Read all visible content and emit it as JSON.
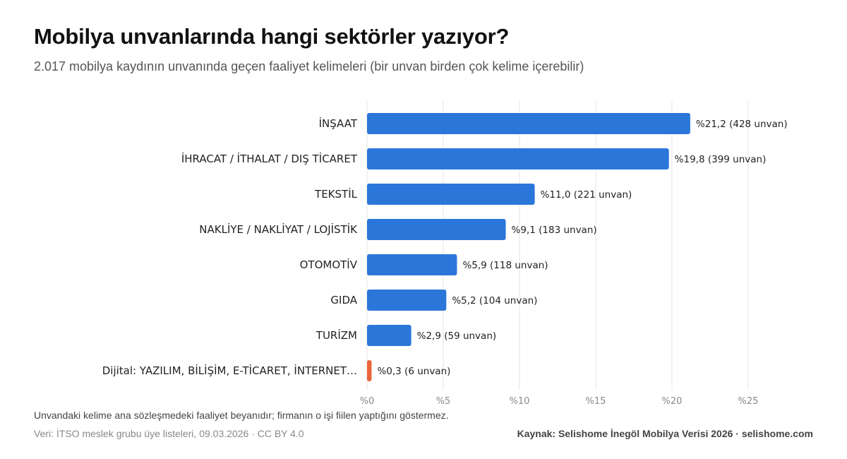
{
  "header": {
    "title": "Mobilya unvanlarında hangi sektörler yazıyor?",
    "subtitle": "2.017 mobilya kaydının unvanında geçen faaliyet kelimeleri (bir unvan birden çok kelime içerebilir)"
  },
  "footer": {
    "note": "Unvandaki kelime ana sözleşmedeki faaliyet beyanıdır; firmanın o işi fiilen yaptığını göstermez.",
    "data_source": "Veri: İTSO meslek grubu üye listeleri, 09.03.2026 · CC BY 4.0",
    "credit": "Kaynak: Selishome İnegöl Mobilya Verisi 2026 · selishome.com"
  },
  "chart_data": {
    "type": "bar",
    "orientation": "horizontal",
    "categories": [
      "İNŞAAT",
      "İHRACAT / İTHALAT / DIŞ TİCARET",
      "TEKSTİL",
      "NAKLİYE / NAKLİYAT / LOJİSTİK",
      "OTOMOTİV",
      "GIDA",
      "TURİZM",
      "Dijital: YAZILIM, BİLİŞİM, E-TİCARET, İNTERNET…"
    ],
    "values": [
      21.2,
      19.8,
      11.0,
      9.1,
      5.9,
      5.2,
      2.9,
      0.3
    ],
    "value_labels": [
      "%21,2 (428 unvan)",
      "%19,8 (399 unvan)",
      "%11,0 (221 unvan)",
      "%9,1 (183 unvan)",
      "%5,9 (118 unvan)",
      "%5,2 (104 unvan)",
      "%2,9 (59 unvan)",
      "%0,3 (6 unvan)"
    ],
    "bar_colors": [
      "#2b77d9",
      "#2b77d9",
      "#2b77d9",
      "#2b77d9",
      "#2b77d9",
      "#2b77d9",
      "#2b77d9",
      "#e8653a"
    ],
    "xlim": [
      0,
      25
    ],
    "xticks": [
      0,
      5,
      10,
      15,
      20,
      25
    ],
    "xtick_labels": [
      "%0",
      "%5",
      "%10",
      "%15",
      "%20",
      "%25"
    ],
    "grid": "vertical",
    "gridline_color": "#e6e6e6"
  }
}
